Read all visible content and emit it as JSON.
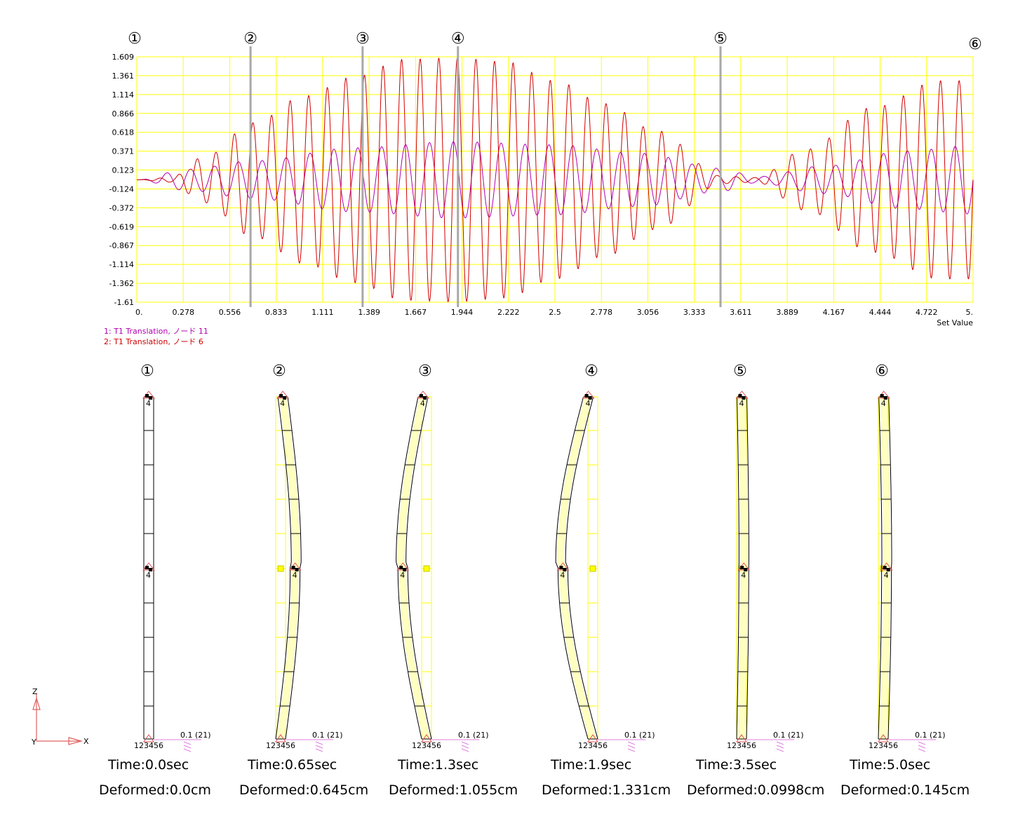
{
  "chart_data": {
    "type": "line",
    "xlabel": "Set Value",
    "ylabel": "",
    "xlim": [
      0,
      5
    ],
    "ylim": [
      -1.61,
      1.609
    ],
    "x_ticks": [
      "0.",
      "0.278",
      "0.556",
      "0.833",
      "1.111",
      "1.389",
      "1.667",
      "1.944",
      "2.222",
      "2.5",
      "2.778",
      "3.056",
      "3.333",
      "3.611",
      "3.889",
      "4.167",
      "4.444",
      "4.722",
      "5."
    ],
    "y_ticks": [
      "1.609",
      "1.361",
      "1.114",
      "0.866",
      "0.618",
      "0.371",
      "0.123",
      "-0.124",
      "-0.372",
      "-0.619",
      "-0.867",
      "-1.114",
      "-1.362",
      "-1.61"
    ],
    "grid": true,
    "legend_position": "bottom-left",
    "series": [
      {
        "name": "1: T1 Translation, ノード 11",
        "color": "#b000b0",
        "frequency": 7.0,
        "envelope": {
          "t": [
            0,
            0.3,
            0.7,
            1.3,
            1.9,
            2.5,
            3.0,
            3.5,
            3.7,
            4.1,
            4.6,
            5.0
          ],
          "a": [
            0,
            0.14,
            0.25,
            0.42,
            0.5,
            0.46,
            0.35,
            0.15,
            0.04,
            0.18,
            0.38,
            0.45
          ]
        }
      },
      {
        "name": "2: T1 Translation, ノード 6",
        "color": "#d00000",
        "frequency": 9.0,
        "envelope": {
          "t": [
            0,
            0.2,
            0.4,
            0.7,
            1.0,
            1.3,
            1.6,
            1.9,
            2.2,
            2.5,
            2.8,
            3.1,
            3.5,
            3.7,
            4.0,
            4.4,
            4.8,
            5.0
          ],
          "a": [
            0,
            0.03,
            0.3,
            0.75,
            1.1,
            1.35,
            1.58,
            1.6,
            1.55,
            1.3,
            1.0,
            0.65,
            0.05,
            0.03,
            0.4,
            0.95,
            1.3,
            1.3
          ]
        }
      }
    ],
    "markers": [
      {
        "label": "①",
        "x": 0
      },
      {
        "label": "②",
        "x": 0.68
      },
      {
        "label": "③",
        "x": 1.35
      },
      {
        "label": "④",
        "x": 1.92
      },
      {
        "label": "⑤",
        "x": 3.49
      },
      {
        "label": "⑥",
        "x": 5.0
      }
    ]
  },
  "snapshots": [
    {
      "marker": "①",
      "time": "Time:0.0sec",
      "deformed": "Deformed:0.0cm",
      "disp": 0,
      "dir": 1
    },
    {
      "marker": "②",
      "time": "Time:0.65sec",
      "deformed": "Deformed:0.645cm",
      "disp": 0.645,
      "dir": 1
    },
    {
      "marker": "③",
      "time": "Time:1.3sec",
      "deformed": "Deformed:1.055cm",
      "disp": 1.055,
      "dir": -1
    },
    {
      "marker": "④",
      "time": "Time:1.9sec",
      "deformed": "Deformed:1.331cm",
      "disp": 1.331,
      "dir": -1
    },
    {
      "marker": "⑤",
      "time": "Time:3.5sec",
      "deformed": "Deformed:0.0998cm",
      "disp": 0.0998,
      "dir": 1
    },
    {
      "marker": "⑥",
      "time": "Time:5.0sec",
      "deformed": "Deformed:0.145cm",
      "disp": 0.145,
      "dir": 1
    }
  ],
  "model_labels": {
    "base_node": "123456",
    "scale_label": "0.1 (21)",
    "node_tag": "4"
  },
  "axes_triad": {
    "z": "Z",
    "x": "X",
    "y": "Y"
  }
}
